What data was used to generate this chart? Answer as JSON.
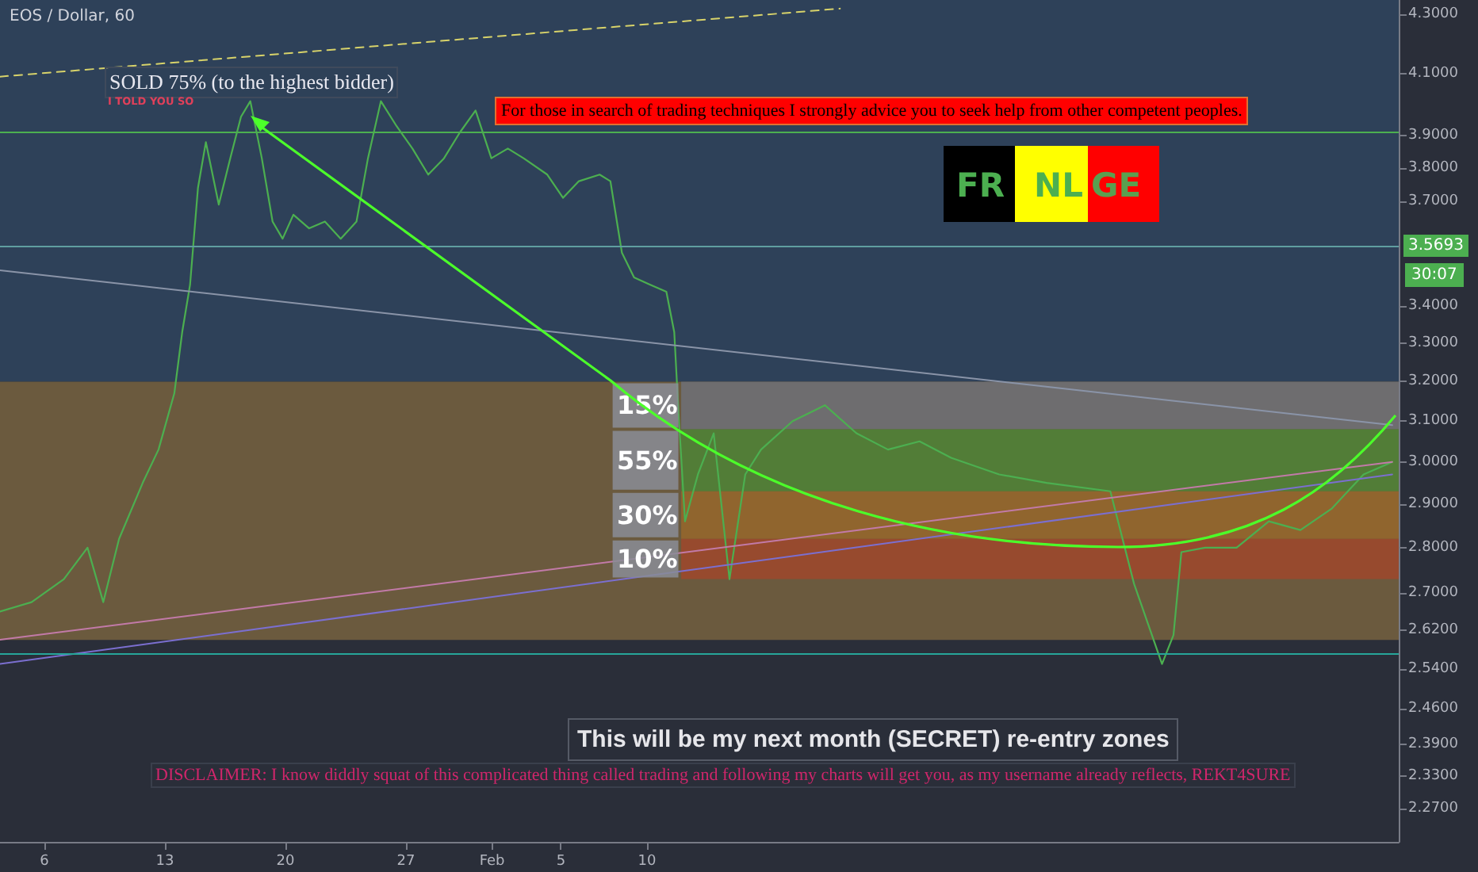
{
  "chart_data": {
    "type": "line",
    "title": "EOS / Dollar, 60",
    "log": "y",
    "marker": "none",
    "xlim": [
      "--01-03T10:00",
      "--03-25T16:00"
    ],
    "xticks": [
      {
        "value": "--01-06",
        "label": "6"
      },
      {
        "value": "--01-13",
        "label": "13"
      },
      {
        "value": "--01-20",
        "label": "20"
      },
      {
        "value": "--01-27",
        "label": "27"
      },
      {
        "value": "--02-01",
        "label": "Feb"
      },
      {
        "value": "--02-05",
        "label": "5"
      },
      {
        "value": "--02-10",
        "label": "10"
      }
    ],
    "ylim": [
      2.21,
      4.35
    ],
    "yticks": [
      {
        "value": 2.27,
        "label": "2.2700"
      },
      {
        "value": 2.33,
        "label": "2.3300"
      },
      {
        "value": 2.39,
        "label": "2.3900"
      },
      {
        "value": 2.46,
        "label": "2.4600"
      },
      {
        "value": 2.54,
        "label": "2.5400"
      },
      {
        "value": 2.62,
        "label": "2.6200"
      },
      {
        "value": 2.7,
        "label": "2.7000"
      },
      {
        "value": 2.8,
        "label": "2.8000"
      },
      {
        "value": 2.9,
        "label": "2.9000"
      },
      {
        "value": 3.0,
        "label": "3.0000"
      },
      {
        "value": 3.1,
        "label": "3.1000"
      },
      {
        "value": 3.2,
        "label": "3.2000"
      },
      {
        "value": 3.3,
        "label": "3.3000"
      },
      {
        "value": 3.4,
        "label": "3.4000"
      },
      {
        "value": 3.7,
        "label": "3.7000"
      },
      {
        "value": 3.8,
        "label": "3.8000"
      },
      {
        "value": 3.9,
        "label": "3.9000"
      },
      {
        "value": 4.1,
        "label": "4.1000"
      },
      {
        "value": 4.3,
        "label": "4.3000"
      }
    ],
    "series": [
      {
        "color": "#4caf50",
        "line_style": "solid",
        "x": [
          "--01-03T10:00",
          "--01-05T06:00",
          "--01-07T03:00",
          "--01-08T12:00",
          "--01-09T10:00",
          "--01-10T08:00",
          "--01-11T17:00",
          "--01-12T15:00",
          "--01-13T13:00",
          "--01-14T00:00",
          "--01-14T11:00",
          "--01-14T22:00",
          "--01-15T09:00",
          "--01-16T03:00",
          "--01-16T19:00",
          "--01-17T10:00",
          "--01-17T23:00",
          "--01-18T15:00",
          "--01-19T06:00",
          "--01-19T20:00",
          "--01-20T11:00",
          "--01-21T09:00",
          "--01-22T07:00",
          "--01-23T05:00",
          "--01-24T03:00",
          "--01-24T19:00",
          "--01-25T13:00",
          "--01-26T11:00",
          "--01-27T09:00",
          "--01-28T07:00",
          "--01-29T05:00",
          "--01-30T03:00",
          "--01-31T01:00",
          "--01-31T23:00",
          "--02-01T22:00",
          "--02-02T20:00",
          "--02-04T05:00",
          "--02-05T03:00",
          "--02-06T01:00",
          "--02-07T06:00",
          "--02-07T21:00",
          "--02-08T13:00",
          "--02-09T06:00",
          "--02-10T04:00",
          "--02-11T03:00",
          "--02-11T14:00",
          "--02-11T20:00",
          "--02-12T05:00",
          "--02-12T23:00",
          "--02-13T21:00",
          "--02-14T19:00",
          "--02-15T17:00",
          "--02-16T15:00",
          "--02-18T11:00",
          "--02-20T08:00",
          "--02-22T04:00",
          "--02-24T00:00",
          "--02-25T20:00",
          "--02-27T16:00",
          "--03-02T11:00",
          "--03-05T05:00",
          "--03-08T22:00",
          "--03-10T07:00",
          "--03-11T22:00",
          "--03-12T14:00",
          "--03-13T01:00",
          "--03-14T10:00",
          "--03-16T06:00",
          "--03-18T03:00",
          "--03-19T23:00",
          "--03-21T19:00",
          "--03-23T15:00",
          "--03-25T07:00"
        ],
        "values": [
          2.66,
          2.68,
          2.73,
          2.8,
          2.68,
          2.82,
          2.95,
          3.03,
          3.17,
          3.33,
          3.46,
          3.74,
          3.88,
          3.69,
          3.83,
          3.96,
          4.01,
          3.83,
          3.64,
          3.59,
          3.66,
          3.62,
          3.64,
          3.59,
          3.64,
          3.83,
          4.01,
          3.93,
          3.86,
          3.78,
          3.83,
          3.91,
          3.98,
          3.83,
          3.86,
          3.83,
          3.78,
          3.71,
          3.76,
          3.78,
          3.76,
          3.55,
          3.48,
          3.46,
          3.44,
          3.33,
          3.12,
          2.86,
          2.97,
          3.07,
          2.73,
          2.97,
          3.03,
          3.1,
          3.14,
          3.07,
          3.03,
          3.05,
          3.01,
          2.97,
          2.95,
          2.93,
          2.72,
          2.55,
          2.61,
          2.79,
          2.8,
          2.8,
          2.86,
          2.84,
          2.89,
          2.97,
          3.0
        ]
      },
      {
        "color": "#d8d36a",
        "line_style": "dashed",
        "x": [
          "--01-03T10:00",
          "--02-21T05:00"
        ],
        "values": [
          4.09,
          4.32
        ]
      },
      {
        "color": "#8a94a8",
        "line_style": "solid",
        "x": [
          "--01-03T10:00",
          "--03-25T07:00"
        ],
        "values": [
          3.5,
          3.09
        ]
      },
      {
        "color": "#7b6fd0",
        "line_style": "solid",
        "x": [
          "--01-03T10:00",
          "--03-25T07:00"
        ],
        "values": [
          2.55,
          2.97
        ]
      },
      {
        "color": "#c27aa8",
        "line_style": "solid",
        "x": [
          "--01-03T10:00",
          "--03-25T07:00"
        ],
        "values": [
          2.6,
          3.0
        ]
      }
    ],
    "bands": [
      {
        "axis": "y",
        "from": 3.2,
        "to": 4.35,
        "color": "#2e4159"
      },
      {
        "axis": "y",
        "from": 2.6,
        "to": 3.2,
        "color": "#6b5a3e"
      },
      {
        "axis": "y",
        "from": 3.08,
        "to": 3.2,
        "label": "15%",
        "color": "#6f7480"
      },
      {
        "axis": "y",
        "from": 2.93,
        "to": 3.08,
        "label": "55%",
        "color": "#4a8a36"
      },
      {
        "axis": "y",
        "from": 2.82,
        "to": 2.93,
        "label": "30%",
        "color": "#9c6a2a"
      },
      {
        "axis": "y",
        "from": 2.73,
        "to": 2.82,
        "label": "10%",
        "color": "#a6462a"
      }
    ],
    "ref_lines": [
      {
        "axis": "y",
        "value": 3.91,
        "color": "#4caf50"
      },
      {
        "axis": "y",
        "value": 3.5693,
        "label": "3.5693",
        "color": "#5f9ea0"
      },
      {
        "axis": "y",
        "value": 2.57,
        "color": "#26a69a"
      }
    ],
    "annotations": [
      "SOLD 75% (to the highest bidder)",
      "I TOLD YOU SO",
      "For those in search of trading techniques I strongly advice you to seek help from other competent peoples.",
      "This will be my next month (SECRET) re-entry zones",
      "DISCLAIMER: I know diddly squat of this complicated thing called trading and following my charts will get you, as my username already reflects, REKT4SURE",
      "FR",
      "NL",
      "GE",
      "30:07"
    ]
  }
}
